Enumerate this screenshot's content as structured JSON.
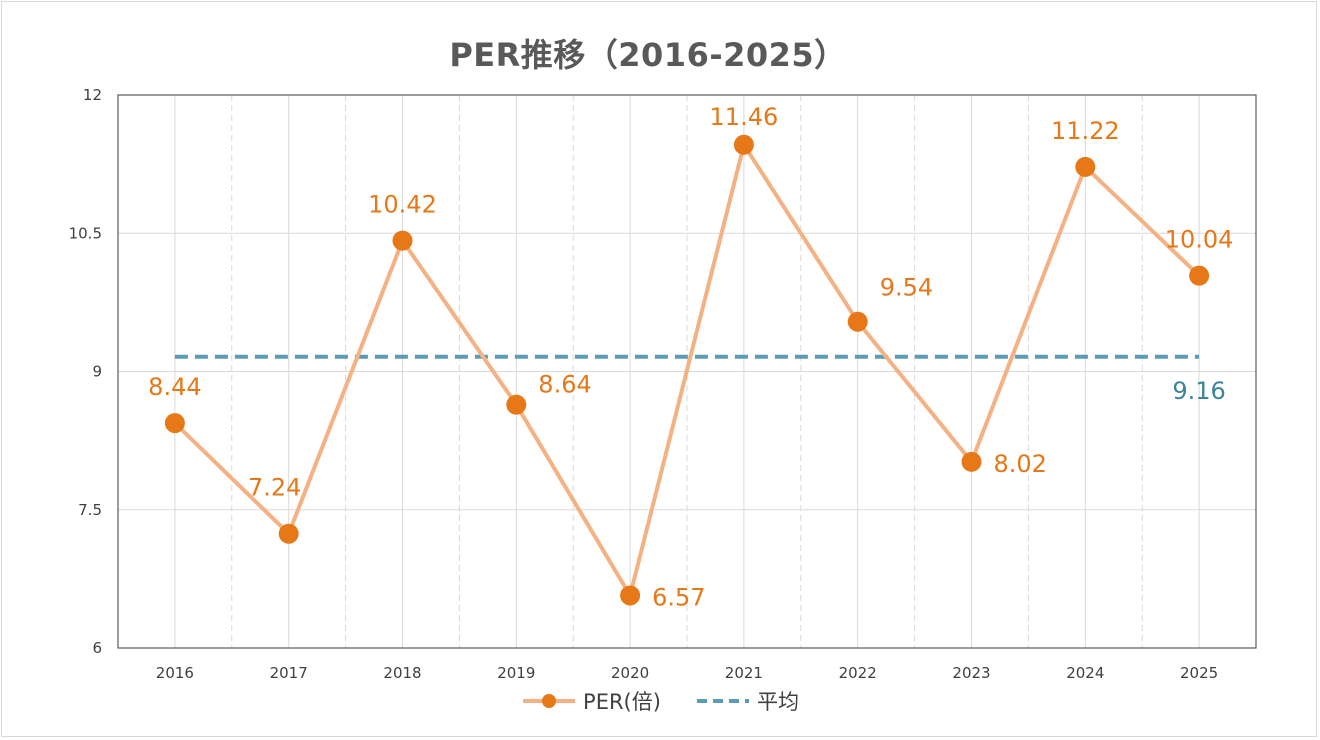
{
  "chart_data": {
    "type": "line",
    "title": "PER推移（2016-2025）",
    "categories": [
      "2016",
      "2017",
      "2018",
      "2019",
      "2020",
      "2021",
      "2022",
      "2023",
      "2024",
      "2025"
    ],
    "series": [
      {
        "name": "PER(倍)",
        "values": [
          8.44,
          7.24,
          10.42,
          8.64,
          6.57,
          11.46,
          9.54,
          8.02,
          11.22,
          10.04
        ],
        "data_labels": [
          "8.44",
          "7.24",
          "10.42",
          "8.64",
          "6.57",
          "11.46",
          "9.54",
          "8.02",
          "11.22",
          "10.04"
        ],
        "line_color": "#f4b183",
        "marker_color": "#e67817"
      },
      {
        "name": "平均",
        "values": [
          9.16,
          9.16,
          9.16,
          9.16,
          9.16,
          9.16,
          9.16,
          9.16,
          9.16,
          9.16
        ],
        "data_label": "9.16",
        "style": "dashed",
        "line_color": "#5b9bb3",
        "label_color": "#3b8499"
      }
    ],
    "ylim": [
      6,
      12
    ],
    "yticks": [
      "6",
      "7.5",
      "9",
      "10.5",
      "12"
    ],
    "xlabel": "",
    "ylabel": "",
    "grid": true,
    "legend_position": "bottom"
  }
}
